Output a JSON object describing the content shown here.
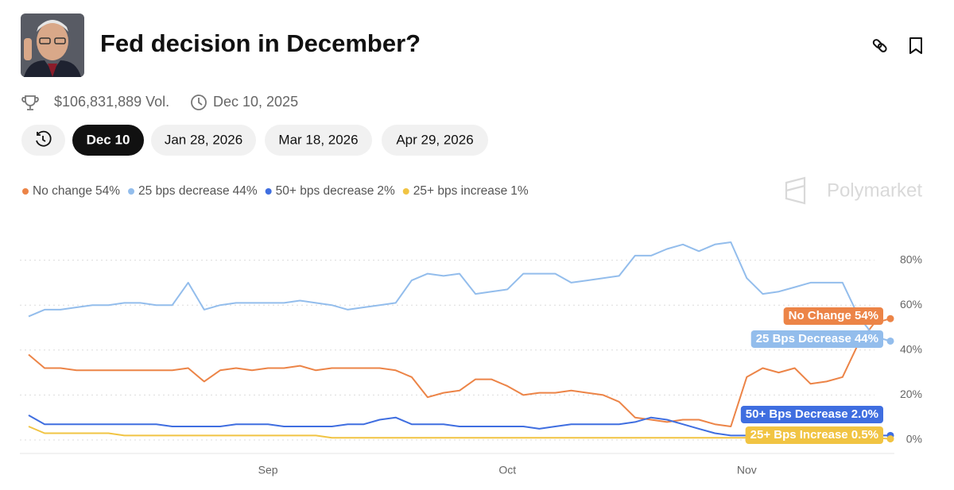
{
  "header": {
    "title": "Fed decision in December?",
    "volume": "$106,831,889 Vol.",
    "end_date": "Dec 10, 2025",
    "tabs": [
      "Dec 10",
      "Jan 28, 2026",
      "Mar 18, 2026",
      "Apr 29, 2026"
    ],
    "active_tab": 0
  },
  "watermark": "Polymarket",
  "chart_data": {
    "type": "line",
    "categories": [
      null,
      null,
      null,
      null,
      null,
      null,
      null,
      null,
      null,
      null,
      null,
      null,
      null,
      null,
      null,
      "Sep",
      null,
      null,
      null,
      null,
      null,
      null,
      null,
      null,
      null,
      null,
      null,
      null,
      null,
      null,
      "Oct",
      null,
      null,
      null,
      null,
      null,
      null,
      null,
      null,
      null,
      null,
      null,
      null,
      null,
      null,
      "Nov",
      null,
      null,
      null,
      null,
      null,
      null,
      null,
      null,
      null
    ],
    "series": [
      {
        "name": "No change",
        "legend_value": "54%",
        "end_label": "No Change 54%",
        "color": "#ec8447",
        "values": [
          38,
          32,
          32,
          31,
          31,
          31,
          31,
          31,
          31,
          31,
          32,
          26,
          31,
          32,
          31,
          32,
          32,
          33,
          31,
          32,
          32,
          32,
          32,
          31,
          28,
          19,
          21,
          22,
          27,
          27,
          24,
          20,
          21,
          21,
          22,
          21,
          20,
          17,
          10,
          9,
          8,
          9,
          9,
          7,
          6,
          28,
          32,
          30,
          32,
          25,
          26,
          28,
          43,
          52,
          54
        ]
      },
      {
        "name": "25 bps decrease",
        "legend_value": "44%",
        "end_label": "25 Bps Decrease 44%",
        "color": "#93bdec",
        "values": [
          55,
          58,
          58,
          59,
          60,
          60,
          61,
          61,
          60,
          60,
          70,
          58,
          60,
          61,
          61,
          61,
          61,
          62,
          61,
          60,
          58,
          59,
          60,
          61,
          71,
          74,
          73,
          74,
          65,
          66,
          67,
          74,
          74,
          74,
          70,
          71,
          72,
          73,
          82,
          82,
          85,
          87,
          84,
          87,
          88,
          72,
          65,
          66,
          68,
          70,
          70,
          70,
          55,
          46,
          44
        ]
      },
      {
        "name": "50+ bps decrease",
        "legend_value": "2%",
        "end_label": "50+ Bps Decrease 2.0%",
        "color": "#3f6ee0",
        "values": [
          11,
          7,
          7,
          7,
          7,
          7,
          7,
          7,
          7,
          6,
          6,
          6,
          6,
          7,
          7,
          7,
          6,
          6,
          6,
          6,
          7,
          7,
          9,
          10,
          7,
          7,
          7,
          6,
          6,
          6,
          6,
          6,
          5,
          6,
          7,
          7,
          7,
          7,
          8,
          10,
          9,
          7,
          5,
          3,
          2,
          2,
          2,
          2,
          2,
          2,
          2,
          2,
          2,
          2,
          2
        ]
      },
      {
        "name": "25+ bps increase",
        "legend_value": "1%",
        "end_label": "25+ Bps Increase 0.5%",
        "color": "#f1c443",
        "values": [
          6,
          3,
          3,
          3,
          3,
          3,
          2,
          2,
          2,
          2,
          2,
          2,
          2,
          2,
          2,
          2,
          2,
          2,
          2,
          1,
          1,
          1,
          1,
          1,
          1,
          1,
          1,
          1,
          1,
          1,
          1,
          1,
          1,
          1,
          1,
          1,
          1,
          1,
          1,
          1,
          1,
          1,
          1,
          1,
          1,
          1,
          1,
          1,
          1,
          1,
          1,
          1,
          1,
          1,
          0.5
        ]
      }
    ],
    "ylim": [
      -6,
      100
    ],
    "yticks": [
      {
        "value": 0,
        "label": "0%"
      },
      {
        "value": 20,
        "label": "20%"
      },
      {
        "value": 40,
        "label": "40%"
      },
      {
        "value": 60,
        "label": "60%"
      },
      {
        "value": 80,
        "label": "80%"
      }
    ],
    "grid": true
  }
}
